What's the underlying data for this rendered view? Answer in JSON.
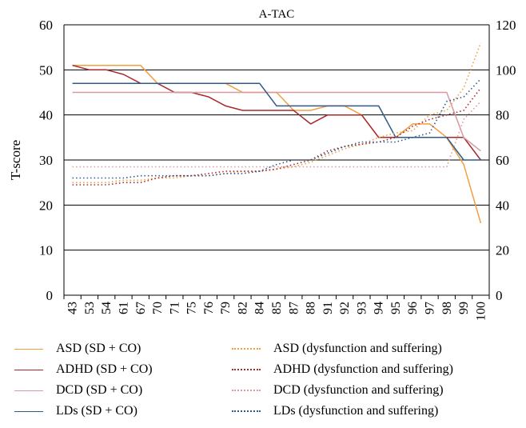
{
  "chart_data": {
    "type": "line",
    "title": "A-TAC",
    "ylabel": "T-score",
    "xlabel": "",
    "categories": [
      "43",
      "53",
      "54",
      "61",
      "67",
      "70",
      "71",
      "75",
      "76",
      "79",
      "82",
      "84",
      "85",
      "87",
      "88",
      "91",
      "92",
      "93",
      "94",
      "95",
      "96",
      "97",
      "98",
      "99",
      "100"
    ],
    "ylim": [
      0,
      60
    ],
    "y_ticks": [
      "0",
      "10",
      "20",
      "30",
      "40",
      "50",
      "60"
    ],
    "y2lim": [
      0,
      120
    ],
    "y2_ticks": [
      "0",
      "20",
      "40",
      "60",
      "80",
      "100",
      "120"
    ],
    "grid": true,
    "legend_position": "bottom",
    "series": [
      {
        "name": "ASD (SD + CO)",
        "axis": "left",
        "style": "solid",
        "color": "#f0a040",
        "values": [
          51,
          51,
          51,
          51,
          51,
          47,
          47,
          47,
          47,
          47,
          45,
          45,
          45,
          41,
          41,
          42,
          42,
          40,
          35,
          35,
          38,
          38,
          35,
          29,
          16
        ]
      },
      {
        "name": "ADHD (SD + CO)",
        "axis": "left",
        "style": "solid",
        "color": "#a8282e",
        "values": [
          51,
          50,
          50,
          49,
          47,
          47,
          45,
          45,
          44,
          42,
          41,
          41,
          41,
          41,
          38,
          40,
          40,
          40,
          35,
          35,
          35,
          35,
          35,
          35,
          30
        ]
      },
      {
        "name": "DCD (SD + CO)",
        "axis": "left",
        "style": "solid",
        "color": "#d69aa0",
        "values": [
          45,
          45,
          45,
          45,
          45,
          45,
          45,
          45,
          45,
          45,
          45,
          45,
          45,
          45,
          45,
          45,
          45,
          45,
          45,
          45,
          45,
          45,
          45,
          35,
          32
        ]
      },
      {
        "name": "LDs (SD + CO)",
        "axis": "left",
        "style": "solid",
        "color": "#2e5a8c",
        "values": [
          47,
          47,
          47,
          47,
          47,
          47,
          47,
          47,
          47,
          47,
          47,
          47,
          42,
          42,
          42,
          42,
          42,
          42,
          42,
          35,
          35,
          35,
          35,
          30,
          30
        ]
      },
      {
        "name": "ASD (dysfunction and suffering)",
        "axis": "right",
        "style": "dotted",
        "color": "#f0a040",
        "values": [
          50,
          50,
          50,
          51,
          51,
          52,
          52,
          53,
          53,
          54,
          55,
          55,
          56,
          57,
          59,
          62,
          65,
          67,
          70,
          72,
          73,
          80,
          82,
          92,
          112
        ]
      },
      {
        "name": "ADHD (dysfunction and suffering)",
        "axis": "right",
        "style": "dotted",
        "color": "#a8282e",
        "values": [
          49,
          49,
          49,
          50,
          50,
          52,
          53,
          53,
          54,
          55,
          55,
          55,
          56,
          58,
          60,
          64,
          66,
          67,
          68,
          70,
          75,
          78,
          80,
          82,
          92
        ]
      },
      {
        "name": "DCD (dysfunction and suffering)",
        "axis": "right",
        "style": "dotted",
        "color": "#d69aa0",
        "values": [
          57,
          57,
          57,
          57,
          57,
          57,
          57,
          57,
          57,
          57,
          57,
          57,
          57,
          57,
          57,
          57,
          57,
          57,
          57,
          57,
          57,
          57,
          57,
          78,
          86
        ]
      },
      {
        "name": "LDs (dysfunction and suffering)",
        "axis": "right",
        "style": "dotted",
        "color": "#2e5a8c",
        "values": [
          52,
          52,
          52,
          52,
          53,
          53,
          53,
          53,
          53,
          54,
          54,
          55,
          58,
          60,
          60,
          63,
          66,
          68,
          68,
          68,
          70,
          72,
          86,
          88,
          96
        ]
      }
    ]
  }
}
